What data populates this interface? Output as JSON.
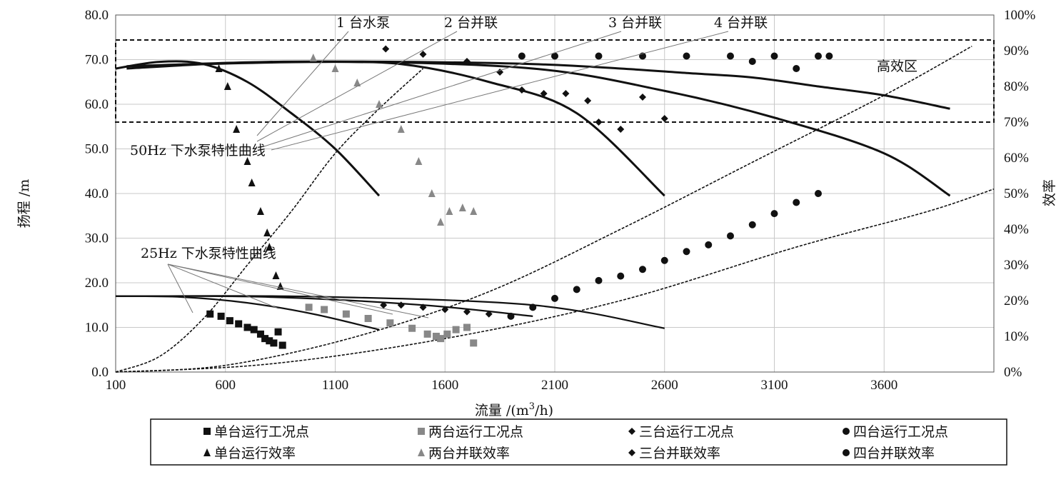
{
  "chart_data": {
    "type": "scatter",
    "title": "",
    "xlabel": "流量 /(m³/h)",
    "xlabel_base": "流量 /(m",
    "xlabel_sup": "3",
    "xlabel_tail": "/h)",
    "ylabel": "扬程 /m",
    "y2label": "效率",
    "xlim": [
      100,
      4100
    ],
    "ylim": [
      0,
      80
    ],
    "y2lim": [
      0,
      100
    ],
    "grid": true,
    "xticks": [
      "100",
      "600",
      "1100",
      "1600",
      "2100",
      "2600",
      "3100",
      "3600"
    ],
    "yticks": [
      "0.0",
      "10.0",
      "20.0",
      "30.0",
      "40.0",
      "50.0",
      "60.0",
      "70.0",
      "80.0"
    ],
    "y2ticks": [
      "0%",
      "10%",
      "20%",
      "30%",
      "40%",
      "50%",
      "60%",
      "70%",
      "80%",
      "90%",
      "100%"
    ],
    "annotations": {
      "pump1": "1 台水泵",
      "pump2": "2 台并联",
      "pump3": "3 台并联",
      "pump4": "4 台并联",
      "hz50": "50Hz 下水泵特性曲线",
      "hz25": "25Hz 下水泵特性曲线",
      "zone": "高效区"
    },
    "high_efficiency_zone": {
      "eff_min": 70,
      "eff_max": 93
    },
    "legend_position": "bottom",
    "legend": [
      "单台运行工况点",
      "两台运行工况点",
      "三台运行工况点",
      "四台运行工况点",
      "单台运行效率",
      "两台并联效率",
      "三台并联效率",
      "四台并联效率"
    ],
    "curves_50hz": [
      {
        "x": [
          100,
          300,
          500,
          700,
          900,
          1100,
          1300
        ],
        "y": [
          68,
          69.5,
          69,
          65,
          58,
          50,
          39.5
        ]
      },
      {
        "x": [
          150,
          600,
          1000,
          1400,
          1800,
          2200,
          2600
        ],
        "y": [
          68,
          69.2,
          69.5,
          69,
          65,
          58,
          39.5
        ]
      },
      {
        "x": [
          150,
          800,
          1400,
          2000,
          2400,
          2700,
          3000,
          3300,
          3600,
          3900
        ],
        "y": [
          68.5,
          69.5,
          69.5,
          69,
          68,
          67,
          66,
          64,
          62,
          59
        ]
      },
      {
        "x": [
          150,
          1100,
          2000,
          2600,
          3100,
          3600,
          3900
        ],
        "y": [
          68.5,
          69.5,
          68,
          63,
          57,
          49,
          39.5
        ]
      }
    ],
    "curves_25hz": [
      {
        "x": [
          100,
          400,
          700,
          1000,
          1300
        ],
        "y": [
          17,
          16.8,
          15.5,
          13,
          9.5
        ]
      },
      {
        "x": [
          100,
          800,
          1500,
          2000
        ],
        "y": [
          17,
          16.8,
          15,
          12.5
        ]
      },
      {
        "x": [
          100,
          1000,
          2000,
          2600
        ],
        "y": [
          17,
          16.9,
          15,
          9.8
        ]
      }
    ],
    "system_curves": [
      {
        "x": [
          100,
          300,
          500,
          700,
          900,
          1100,
          1300,
          1500
        ],
        "y": [
          0,
          3.5,
          12,
          24,
          36,
          49,
          59,
          68
        ]
      },
      {
        "x": [
          100,
          600,
          1200,
          1800,
          2400,
          3000,
          3600,
          4000
        ],
        "y": [
          0,
          1.5,
          8,
          18,
          32,
          47,
          62,
          73
        ]
      },
      {
        "x": [
          100,
          800,
          1600,
          2400,
          3200,
          3800,
          4100
        ],
        "y": [
          0,
          1.8,
          7.5,
          16,
          28,
          36,
          41
        ]
      }
    ],
    "series": [
      {
        "name": "单台运行工况点",
        "marker": "square",
        "color": "#111111",
        "x": [
          530,
          580,
          620,
          660,
          700,
          730,
          760,
          780,
          800,
          820,
          840,
          860
        ],
        "y": [
          13,
          12.5,
          11.5,
          10.8,
          10,
          9.5,
          8.5,
          7.5,
          7,
          6.5,
          9,
          6
        ]
      },
      {
        "name": "两台运行工况点",
        "marker": "square",
        "color": "#888888",
        "x": [
          980,
          1050,
          1150,
          1250,
          1350,
          1450,
          1520,
          1560,
          1580,
          1610,
          1650,
          1700,
          1730
        ],
        "y": [
          14.5,
          14,
          13,
          12,
          11,
          9.8,
          8.5,
          8,
          7.5,
          8.5,
          9.5,
          10,
          6.5
        ]
      },
      {
        "name": "三台运行工况点",
        "marker": "diamond",
        "color": "#111111",
        "x": [
          1320,
          1400,
          1500,
          1600,
          1700,
          1800,
          1900
        ],
        "y": [
          15,
          15,
          14.5,
          14,
          13.5,
          13,
          12.5
        ]
      },
      {
        "name": "四台运行工况点",
        "marker": "circle",
        "color": "#111111",
        "x": [
          1900,
          2000,
          2100,
          2200,
          2300,
          2400,
          2500,
          2600,
          2700,
          2800,
          2900,
          3000,
          3100,
          3200,
          3300
        ],
        "y": [
          12.5,
          14.5,
          16.5,
          18.5,
          20.5,
          21.5,
          23,
          25,
          27,
          28.5,
          30.5,
          33,
          35.5,
          38,
          40
        ]
      },
      {
        "name": "单台运行效率",
        "marker": "triangle",
        "color": "#111111",
        "x": [
          570,
          610,
          650,
          700,
          720,
          760,
          790,
          800,
          830,
          850
        ],
        "y": [
          85,
          80,
          68,
          59,
          53,
          45,
          39,
          35,
          27,
          24
        ]
      },
      {
        "name": "两台并联效率",
        "marker": "triangle",
        "color": "#888888",
        "x": [
          1000,
          1100,
          1200,
          1300,
          1400,
          1480,
          1540,
          1580,
          1620,
          1680,
          1730
        ],
        "y": [
          88,
          85,
          81,
          75,
          68,
          59,
          50,
          42,
          45,
          46,
          45
        ]
      },
      {
        "name": "三台并联效率",
        "marker": "diamond",
        "color": "#111111",
        "x": [
          1330,
          1500,
          1700,
          1850,
          1950,
          2050,
          2150,
          2250,
          2300,
          2400,
          2500,
          2600
        ],
        "y": [
          90.5,
          89,
          87,
          84,
          79,
          78,
          78,
          76,
          70,
          68,
          77,
          71
        ]
      },
      {
        "name": "四台并联效率",
        "marker": "circle",
        "color": "#111111",
        "x": [
          1950,
          2100,
          2300,
          2500,
          2700,
          2900,
          3000,
          3100,
          3200,
          3300,
          3350
        ],
        "y": [
          88.5,
          88.5,
          88.5,
          88.5,
          88.5,
          88.5,
          87,
          88.5,
          85,
          88.5,
          88.5
        ]
      }
    ]
  }
}
